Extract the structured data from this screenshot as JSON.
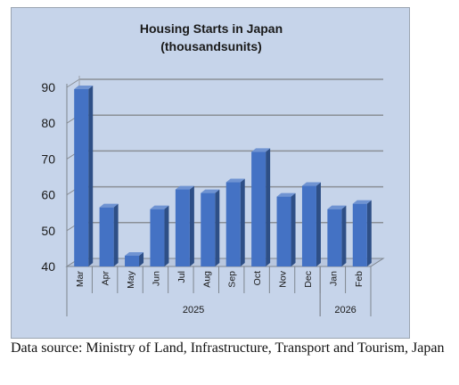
{
  "chart_data": {
    "type": "bar",
    "title": "Housing Starts in Japan",
    "subtitle": "(thousandsunits)",
    "categories": [
      "Mar",
      "Apr",
      "May",
      "Jun",
      "Jul",
      "Aug",
      "Sep",
      "Oct",
      "Nov",
      "Dec",
      "Jan",
      "Feb"
    ],
    "values": [
      89.5,
      56.5,
      43,
      56,
      61.5,
      60.5,
      63.5,
      72,
      59.5,
      62.5,
      56,
      57.5
    ],
    "ylim": [
      40,
      90
    ],
    "yticks": [
      "40",
      "50",
      "60",
      "70",
      "80",
      "90"
    ],
    "groups": [
      {
        "label": "2025",
        "count": 10
      },
      {
        "label": "2026",
        "count": 2
      }
    ],
    "grid": true,
    "bar_color": "#4472c4",
    "background_color": "#c6d4ea"
  },
  "source_note": "Data source: Ministry of Land, Infrastructure, Transport and Tourism, Japan"
}
